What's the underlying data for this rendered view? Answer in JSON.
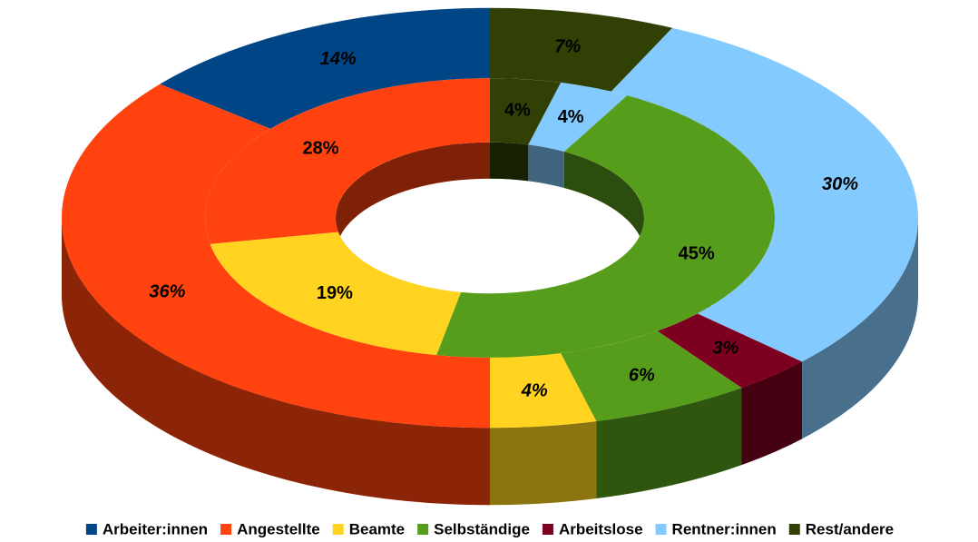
{
  "chart_data": {
    "type": "donut3d",
    "categories": [
      "Arbeiter:innen",
      "Angestellte",
      "Beamte",
      "Selbständige",
      "Arbeitslose",
      "Rentner:innen",
      "Rest/andere"
    ],
    "colors": [
      "#004586",
      "#ff420e",
      "#ffd320",
      "#579d1c",
      "#7e0021",
      "#83caff",
      "#314004"
    ],
    "rings": [
      {
        "values": [
          14,
          36,
          4,
          6,
          3,
          30,
          7
        ],
        "value_labels": [
          "14%",
          "36%",
          "4%",
          "6%",
          "3%",
          "30%",
          "7%"
        ]
      },
      {
        "values": [
          0,
          28,
          19,
          45,
          0,
          4,
          4
        ],
        "value_labels": [
          null,
          "28%",
          "19%",
          "45%",
          null,
          "4%",
          "4%"
        ]
      }
    ],
    "legend": "bottom"
  }
}
